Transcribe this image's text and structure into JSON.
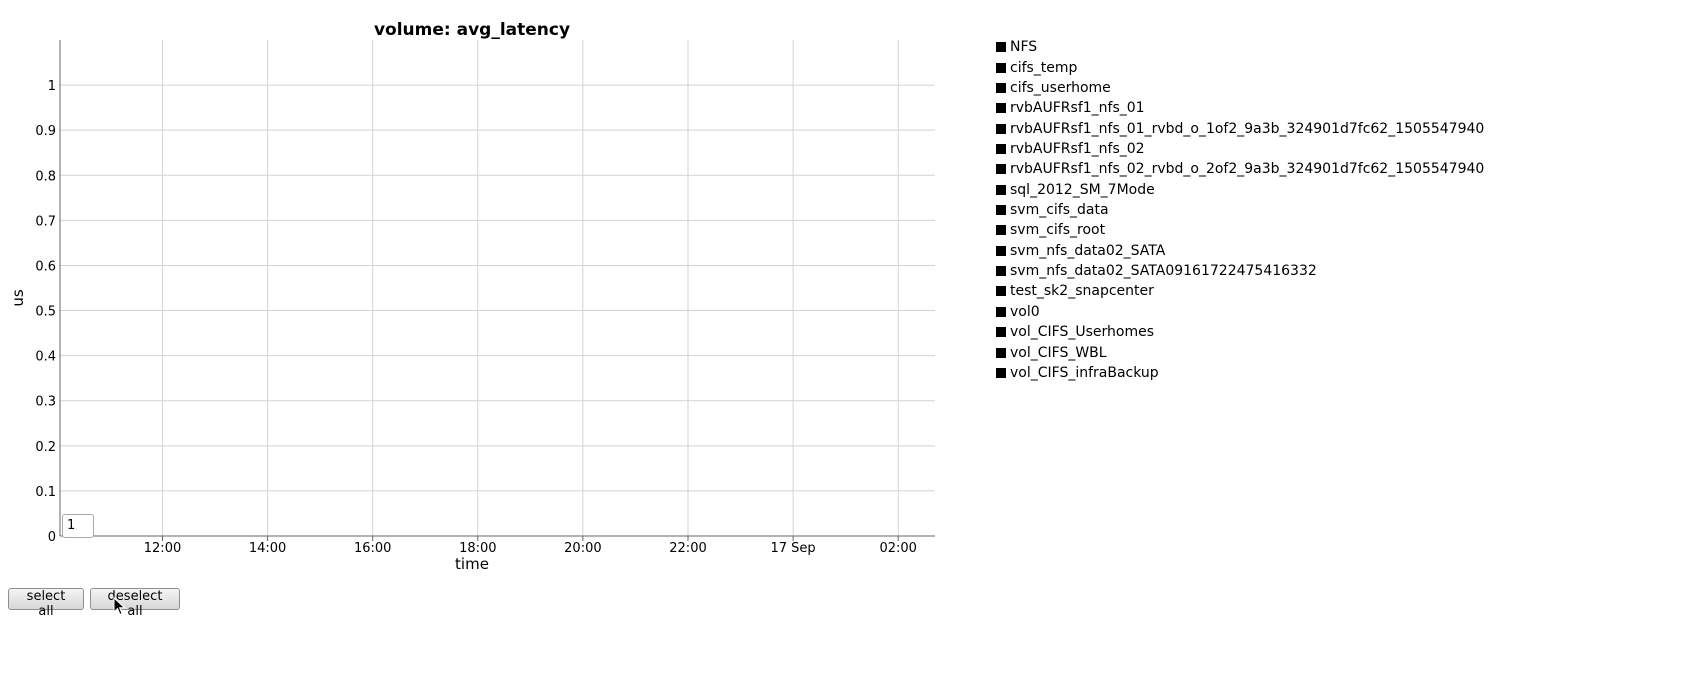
{
  "chart_data": {
    "type": "line",
    "title": "volume: avg_latency",
    "xlabel": "time",
    "ylabel": "us",
    "ylim": [
      0,
      1.1
    ],
    "yticks": [
      0,
      0.1,
      0.2,
      0.3,
      0.4,
      0.5,
      0.6,
      0.7,
      0.8,
      0.9,
      1
    ],
    "xticks": [
      "12:00",
      "14:00",
      "16:00",
      "18:00",
      "20:00",
      "22:00",
      "17 Sep",
      "02:00"
    ],
    "grid": true,
    "legend_position": "right",
    "series": [
      {
        "name": "NFS",
        "values": []
      },
      {
        "name": "cifs_temp",
        "values": []
      },
      {
        "name": "cifs_userhome",
        "values": []
      },
      {
        "name": "rvbAUFRsf1_nfs_01",
        "values": []
      },
      {
        "name": "rvbAUFRsf1_nfs_01_rvbd_o_1of2_9a3b_324901d7fc62_1505547940",
        "values": []
      },
      {
        "name": "rvbAUFRsf1_nfs_02",
        "values": []
      },
      {
        "name": "rvbAUFRsf1_nfs_02_rvbd_o_2of2_9a3b_324901d7fc62_1505547940",
        "values": []
      },
      {
        "name": "sql_2012_SM_7Mode",
        "values": []
      },
      {
        "name": "svm_cifs_data",
        "values": []
      },
      {
        "name": "svm_cifs_root",
        "values": []
      },
      {
        "name": "svm_nfs_data02_SATA",
        "values": []
      },
      {
        "name": "svm_nfs_data02_SATA09161722475416332",
        "values": []
      },
      {
        "name": "test_sk2_snapcenter",
        "values": []
      },
      {
        "name": "vol0",
        "values": []
      },
      {
        "name": "vol_CIFS_Userhomes",
        "values": []
      },
      {
        "name": "vol_CIFS_WBL",
        "values": []
      },
      {
        "name": "vol_CIFS_infraBackup",
        "values": []
      }
    ],
    "colors": {
      "grid": "#d3d3d3",
      "axis": "#666666",
      "swatch": "#000000"
    }
  },
  "controls": {
    "smoothing_value": "1",
    "select_all_label": "select all",
    "deselect_all_label": "deselect all"
  }
}
